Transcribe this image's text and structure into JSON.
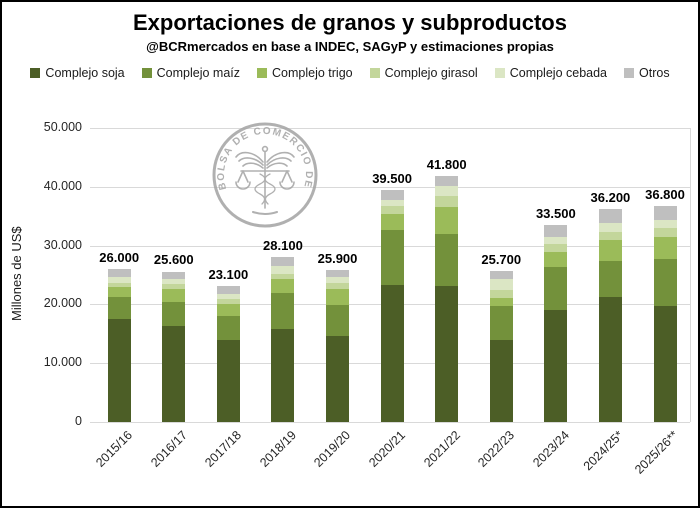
{
  "header": {
    "title": "Exportaciones de granos y subproductos",
    "subtitle": "@BCRmercados en base a INDEC, SAGyP y estimaciones propias"
  },
  "watermark": {
    "text": "BOLSA DE COMERCIO DE ROSARIO"
  },
  "colors": {
    "soja": "#4c5e26",
    "maiz": "#73913b",
    "trigo": "#9bbb59",
    "girasol": "#c3d69b",
    "cebada": "#dbe6c4",
    "otros": "#bfbfbf",
    "gridline": "#d9d9d9",
    "watermark_gray": "#a3a3a3"
  },
  "chart_data": {
    "type": "bar",
    "stacked": true,
    "title": "Exportaciones de granos y subproductos",
    "xlabel": "",
    "ylabel": "Millones de US$",
    "ylim": [
      0,
      50000
    ],
    "ytick_labels": [
      "0",
      "10.000",
      "20.000",
      "30.000",
      "40.000",
      "50.000"
    ],
    "grid": "horizontal",
    "legend_position": "top",
    "categories": [
      "2015/16",
      "2016/17",
      "2017/18",
      "2018/19",
      "2019/20",
      "2020/21",
      "2021/22",
      "2022/23",
      "2023/24",
      "2024/25*",
      "2025/26**"
    ],
    "totals": [
      26000,
      25600,
      23100,
      28100,
      25900,
      39500,
      41800,
      25700,
      33500,
      36200,
      36800
    ],
    "total_labels": [
      "26.000",
      "25.600",
      "23.100",
      "28.100",
      "25.900",
      "39.500",
      "41.800",
      "25.700",
      "33.500",
      "36.200",
      "36.800"
    ],
    "series": [
      {
        "name": "Complejo soja",
        "color": "#4c5e26",
        "values": [
          17600,
          16400,
          14000,
          15900,
          14700,
          23300,
          23100,
          13900,
          19000,
          21300,
          19800
        ]
      },
      {
        "name": "Complejo maíz",
        "color": "#73913b",
        "values": [
          3700,
          4000,
          4000,
          6100,
          5200,
          9300,
          8800,
          5900,
          7400,
          6000,
          8000
        ]
      },
      {
        "name": "Complejo trigo",
        "color": "#9bbb59",
        "values": [
          1700,
          2300,
          2100,
          2400,
          2800,
          2800,
          4700,
          1300,
          2500,
          3600,
          3600
        ]
      },
      {
        "name": "Complejo girasol",
        "color": "#c3d69b",
        "values": [
          700,
          700,
          800,
          700,
          1000,
          1300,
          1900,
          1300,
          1400,
          1500,
          1600
        ]
      },
      {
        "name": "Complejo cebada",
        "color": "#dbe6c4",
        "values": [
          900,
          1000,
          900,
          1400,
          900,
          1100,
          1600,
          1900,
          1200,
          1400,
          1400
        ]
      },
      {
        "name": "Otros",
        "color": "#bfbfbf",
        "values": [
          1400,
          1200,
          1300,
          1600,
          1300,
          1700,
          1700,
          1400,
          2000,
          2400,
          2400
        ]
      }
    ]
  }
}
